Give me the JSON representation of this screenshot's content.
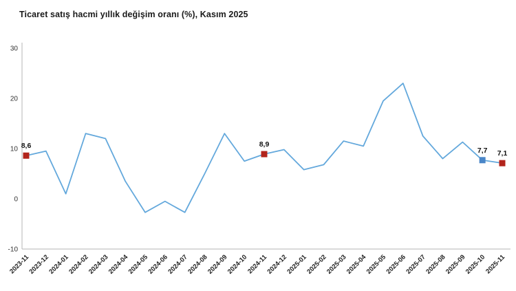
{
  "title": "Ticaret satış hacmi yıllık değişim oranı (%), Kasım 2025",
  "chart_data": {
    "type": "line",
    "title": "Ticaret satış hacmi yıllık değişim oranı (%), Kasım 2025",
    "xlabel": "",
    "ylabel": "",
    "ylim": [
      -10,
      30
    ],
    "yticks": [
      30,
      20,
      10,
      0,
      -10
    ],
    "grid": false,
    "legend": "none",
    "line_color": "#63a8dc",
    "axis_color": "#b5b5b5",
    "tick_label_color": "#222222",
    "x": [
      "2023-11",
      "2023-12",
      "2024-01",
      "2024-02",
      "2024-03",
      "2024-04",
      "2024-05",
      "2024-06",
      "2024-07",
      "2024-08",
      "2024-09",
      "2024-10",
      "2024-11",
      "2024-12",
      "2025-01",
      "2025-02",
      "2025-03",
      "2025-04",
      "2025-05",
      "2025-06",
      "2025-07",
      "2025-08",
      "2025-09",
      "2025-10",
      "2025-11"
    ],
    "values": [
      8.6,
      9.5,
      1.0,
      13.0,
      12.0,
      3.5,
      -2.7,
      -0.5,
      -2.7,
      5.0,
      13.0,
      7.5,
      8.9,
      9.8,
      5.8,
      6.8,
      11.5,
      10.5,
      19.5,
      23.0,
      12.5,
      8.0,
      11.3,
      7.7,
      7.1
    ],
    "annotations": [
      {
        "x": "2023-11",
        "value": 8.6,
        "label": "8,6",
        "marker_color": "#b2241c"
      },
      {
        "x": "2024-11",
        "value": 8.9,
        "label": "8,9",
        "marker_color": "#b2241c"
      },
      {
        "x": "2025-10",
        "value": 7.7,
        "label": "7,7",
        "marker_color": "#4a86c8"
      },
      {
        "x": "2025-11",
        "value": 7.1,
        "label": "7,1",
        "marker_color": "#b2241c"
      }
    ]
  }
}
